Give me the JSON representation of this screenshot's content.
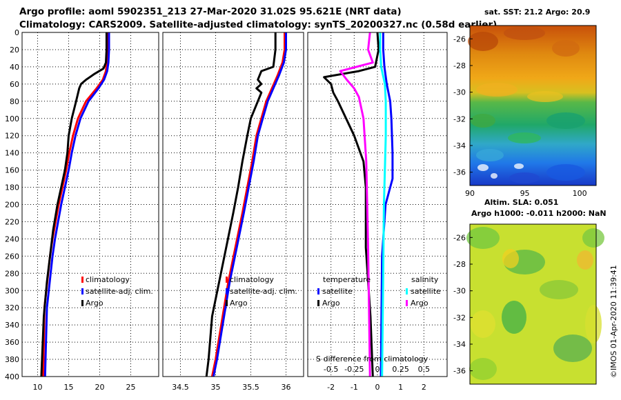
{
  "header": {
    "title_line1": "Argo profile: aoml 5902351_213 27-Mar-2020 31.02S 95.621E (NRT data)",
    "title_line2": "Climatology: CARS2009. Satellite-adjusted climatology: synTS_20200327.nc (0.58d earlier)"
  },
  "footer": {
    "credit": "©IMOS 01-Apr-2020 11:39:41"
  },
  "colors": {
    "climatology": "#ff0000",
    "satellite": "#0000ff",
    "argo": "#000000",
    "sat_salinity": "#00ffff",
    "argo_salinity": "#ff00ff"
  },
  "chart_data": [
    {
      "type": "line",
      "name": "temperature-profile",
      "xlim": [
        7.5,
        29.5
      ],
      "ylim": [
        0,
        400
      ],
      "xticks": [
        "10",
        "15",
        "20",
        "25"
      ],
      "yticks": [
        "0",
        "20",
        "40",
        "60",
        "80",
        "100",
        "120",
        "140",
        "160",
        "180",
        "200",
        "220",
        "240",
        "260",
        "280",
        "300",
        "320",
        "340",
        "360",
        "380",
        "400"
      ],
      "legend": [
        "climatology",
        "satellite-adj. clim.",
        "Argo"
      ],
      "series": [
        {
          "name": "climatology",
          "color": "#ff0000",
          "x": [
            21.2,
            21.2,
            21.15,
            21.0,
            20.5,
            19.5,
            17.8,
            16.5,
            15.7,
            15.1,
            14.6,
            14.0,
            13.4,
            12.9,
            12.4,
            12.0,
            11.7,
            11.4,
            11.1,
            10.9
          ],
          "y": [
            0,
            20,
            35,
            45,
            55,
            65,
            80,
            100,
            120,
            140,
            160,
            180,
            200,
            220,
            240,
            260,
            280,
            300,
            320,
            400
          ]
        },
        {
          "name": "satellite-adj. clim.",
          "color": "#0000ff",
          "x": [
            21.5,
            21.5,
            21.4,
            21.2,
            20.7,
            19.8,
            18.2,
            16.9,
            16.1,
            15.5,
            15.0,
            14.4,
            13.8,
            13.3,
            12.8,
            12.4,
            12.1,
            11.8,
            11.5,
            11.2
          ],
          "y": [
            0,
            20,
            35,
            45,
            55,
            65,
            80,
            100,
            120,
            140,
            160,
            180,
            200,
            220,
            240,
            260,
            280,
            300,
            320,
            400
          ]
        },
        {
          "name": "Argo",
          "color": "#000000",
          "x": [
            21.1,
            21.1,
            21.0,
            20.6,
            19.2,
            17.8,
            17.0,
            16.7,
            16.2,
            15.5,
            15.0,
            14.8,
            14.4,
            13.8,
            13.2,
            12.5,
            12.0,
            11.5,
            11.0,
            10.6
          ],
          "y": [
            0,
            20,
            35,
            42,
            48,
            55,
            60,
            65,
            80,
            100,
            120,
            140,
            160,
            180,
            200,
            230,
            260,
            290,
            330,
            400
          ]
        }
      ]
    },
    {
      "type": "line",
      "name": "salinity-profile",
      "xlim": [
        34.25,
        36.25
      ],
      "ylim": [
        0,
        400
      ],
      "xticks": [
        "34.5",
        "35",
        "35.5",
        "36"
      ],
      "legend": [
        "climatology",
        "satellite-adj. clim.",
        "Argo"
      ],
      "series": [
        {
          "name": "climatology",
          "color": "#ff0000",
          "x": [
            35.98,
            35.98,
            35.95,
            35.88,
            35.8,
            35.72,
            35.65,
            35.58,
            35.52,
            35.45,
            35.38,
            35.28,
            35.18,
            35.1,
            35.0,
            34.95
          ],
          "y": [
            0,
            20,
            35,
            50,
            65,
            80,
            100,
            120,
            150,
            180,
            210,
            250,
            290,
            330,
            380,
            400
          ]
        },
        {
          "name": "satellite-adj. clim.",
          "color": "#0000ff",
          "x": [
            36.0,
            36.0,
            35.97,
            35.9,
            35.82,
            35.74,
            35.67,
            35.6,
            35.54,
            35.47,
            35.4,
            35.3,
            35.2,
            35.12,
            35.02,
            34.97
          ],
          "y": [
            0,
            20,
            35,
            50,
            65,
            80,
            100,
            120,
            150,
            180,
            210,
            250,
            290,
            330,
            380,
            400
          ]
        },
        {
          "name": "Argo",
          "color": "#000000",
          "x": [
            35.85,
            35.85,
            35.82,
            35.65,
            35.6,
            35.65,
            35.58,
            35.65,
            35.6,
            35.5,
            35.45,
            35.38,
            35.32,
            35.25,
            35.15,
            35.05,
            34.95,
            34.9,
            34.87
          ],
          "y": [
            0,
            20,
            40,
            45,
            55,
            60,
            65,
            70,
            80,
            100,
            120,
            150,
            180,
            210,
            250,
            290,
            330,
            380,
            400
          ]
        }
      ]
    },
    {
      "type": "line",
      "name": "difference-profile",
      "xlim": [
        -3,
        3
      ],
      "ylim": [
        0,
        400
      ],
      "xticks": [
        "-2",
        "-1",
        "0",
        "1",
        "2"
      ],
      "secondary_xticks": [
        "-0.5",
        "-0.25",
        "0",
        "0.25",
        "0.5"
      ],
      "secondary_xlabel": "S difference from climatology",
      "legend_temperature": {
        "header": "temperature",
        "items": [
          "satellite",
          "Argo"
        ]
      },
      "legend_salinity": {
        "header": "salinity",
        "items": [
          "satellite",
          "Argo"
        ]
      },
      "series": [
        {
          "name": "temperature satellite",
          "color": "#0000ff",
          "x": [
            0.25,
            0.25,
            0.3,
            0.4,
            0.55,
            0.6,
            0.65,
            0.65,
            0.55,
            0.35,
            0.2,
            0.15
          ],
          "y": [
            0,
            20,
            40,
            60,
            80,
            100,
            140,
            170,
            180,
            200,
            260,
            400
          ]
        },
        {
          "name": "temperature Argo",
          "color": "#000000",
          "x": [
            0,
            0.05,
            -0.1,
            -0.8,
            -2.3,
            -2.0,
            -1.9,
            -1.7,
            -1.0,
            -0.6,
            -0.5,
            -0.5,
            -0.3,
            -0.2
          ],
          "y": [
            0,
            20,
            40,
            45,
            52,
            60,
            70,
            80,
            120,
            150,
            180,
            250,
            330,
            400
          ]
        },
        {
          "name": "salinity satellite",
          "color": "#00ffff",
          "x": [
            0.03,
            0.03,
            0.04,
            0.08,
            0.09,
            0.09,
            0.08,
            0.07,
            0.06,
            0.05
          ],
          "y": [
            0,
            20,
            40,
            60,
            80,
            120,
            160,
            200,
            300,
            400
          ]
        },
        {
          "name": "salinity Argo",
          "color": "#ff00ff",
          "x": [
            -0.08,
            -0.1,
            -0.05,
            -0.4,
            -0.33,
            -0.25,
            -0.2,
            -0.15,
            -0.12,
            -0.1,
            -0.08
          ],
          "y": [
            0,
            20,
            35,
            45,
            55,
            65,
            75,
            100,
            150,
            250,
            400
          ]
        }
      ]
    },
    {
      "type": "heatmap",
      "name": "sst-map",
      "title": "sat. SST: 21.2 Argo: 20.9",
      "xticks": [
        "90",
        "95",
        "100"
      ],
      "yticks": [
        "-26",
        "-28",
        "-30",
        "-32",
        "-34",
        "-36"
      ]
    },
    {
      "type": "heatmap",
      "name": "sla-map",
      "title_line1": "Altim. SLA: 0.051",
      "title_line2": "Argo h1000: -0.011 h2000: NaN",
      "yticks": [
        "-26",
        "-28",
        "-30",
        "-32",
        "-34",
        "-36"
      ]
    }
  ]
}
